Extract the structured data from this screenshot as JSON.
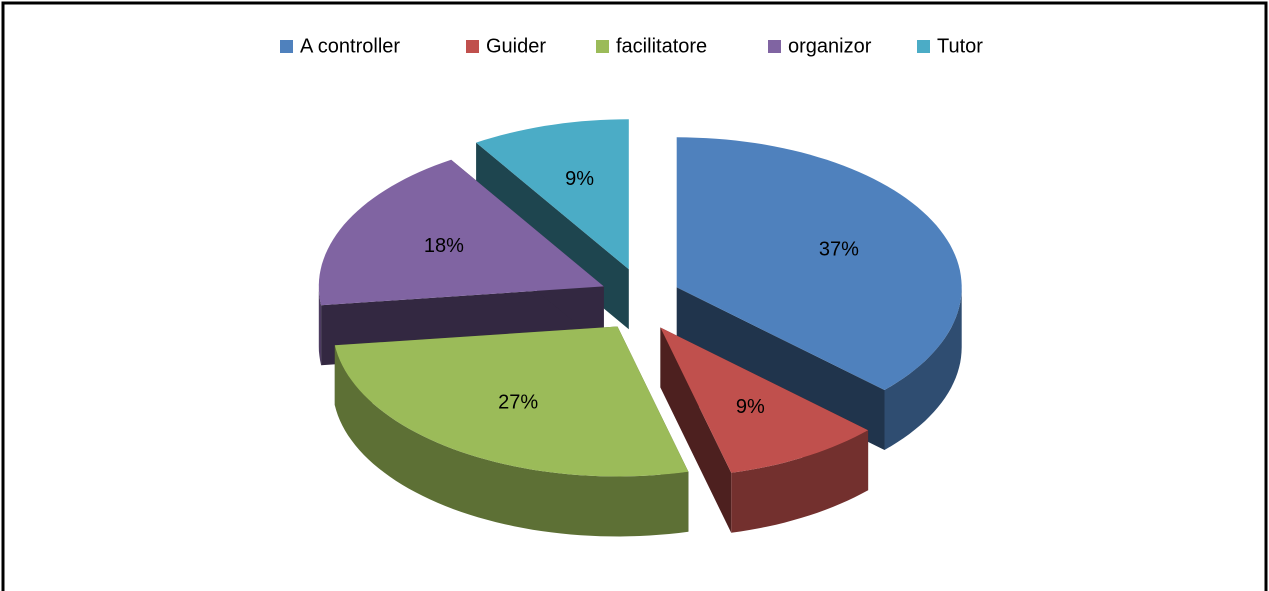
{
  "chart_data": {
    "type": "pie3d",
    "categories": [
      "A controller",
      "Guider",
      "facilitatore",
      "organizor",
      "Tutor"
    ],
    "values": [
      37,
      9,
      27,
      18,
      9
    ],
    "value_labels": [
      "37%",
      "9%",
      "27%",
      "18%",
      "9%"
    ],
    "colors": [
      "#4f81bd",
      "#c0504d",
      "#9bbb59",
      "#8064a2",
      "#4bacc6"
    ],
    "legend": "top"
  }
}
